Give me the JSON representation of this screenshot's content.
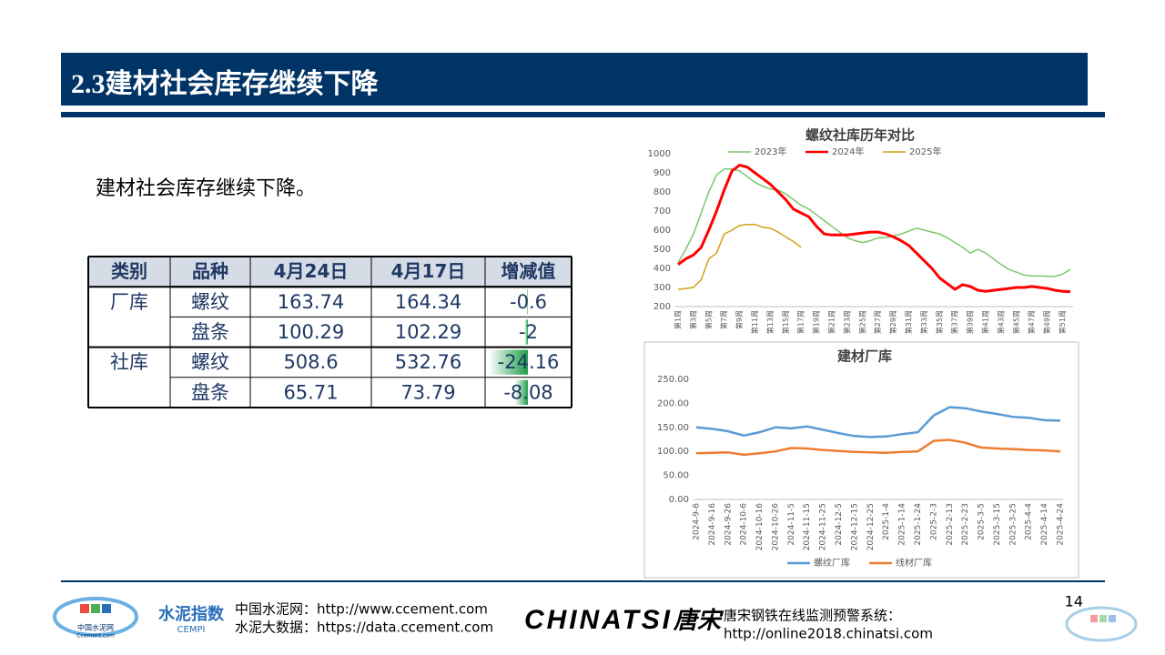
{
  "header": {
    "title": "2.3建材社会库存继续下降"
  },
  "body_text": "建材社会库存继续下降。",
  "table": {
    "columns": [
      "类别",
      "品种",
      "4月24日",
      "4月17日",
      "增减值"
    ],
    "groups": [
      {
        "name": "厂库",
        "rows": [
          {
            "name": "螺纹",
            "this_week": 163.74,
            "last_week": 164.34,
            "change": -0.6
          },
          {
            "name": "盘条",
            "this_week": 100.29,
            "last_week": 102.29,
            "change": -2
          }
        ]
      },
      {
        "name": "社库",
        "rows": [
          {
            "name": "螺纹",
            "this_week": 508.6,
            "last_week": 532.76,
            "change": -24.16
          },
          {
            "name": "盘条",
            "this_week": 65.71,
            "last_week": 73.79,
            "change": -8.08
          }
        ]
      }
    ]
  },
  "chart_data": [
    {
      "type": "line",
      "title": "螺纹社库历年对比",
      "categories": [
        "第1周",
        null,
        "第3周",
        null,
        "第5周",
        null,
        "第7周",
        null,
        "第9周",
        null,
        "第11周",
        null,
        "第13周",
        null,
        "第15周",
        null,
        "第17周",
        null,
        "第19周",
        null,
        "第21周",
        null,
        "第23周",
        null,
        "第25周",
        null,
        "第27周",
        null,
        "第29周",
        null,
        "第31周",
        null,
        "第33周",
        null,
        "第35周",
        null,
        "第37周",
        null,
        "第39周",
        null,
        "第41周",
        null,
        "第43周",
        null,
        "第45周",
        null,
        "第47周",
        null,
        "第49周",
        null,
        "第51周",
        null
      ],
      "ylim": [
        200,
        1000
      ],
      "yticks": [
        200,
        300,
        400,
        500,
        600,
        700,
        800,
        900,
        1000
      ],
      "grid": false,
      "legend": "top",
      "series": [
        {
          "name": "2023年",
          "color": "#7cc66a",
          "values": [
            430,
            500,
            580,
            690,
            800,
            890,
            920,
            920,
            910,
            880,
            850,
            830,
            815,
            810,
            790,
            760,
            730,
            710,
            680,
            650,
            620,
            590,
            560,
            545,
            535,
            545,
            560,
            560,
            570,
            580,
            595,
            610,
            600,
            590,
            580,
            560,
            535,
            510,
            480,
            500,
            480,
            450,
            420,
            395,
            380,
            365,
            360,
            360,
            358,
            358,
            370,
            395
          ]
        },
        {
          "name": "2024年",
          "color": "#ff0000",
          "values": [
            420,
            450,
            470,
            510,
            600,
            700,
            810,
            910,
            940,
            930,
            900,
            870,
            840,
            800,
            760,
            710,
            690,
            670,
            620,
            580,
            575,
            575,
            575,
            580,
            585,
            590,
            590,
            580,
            565,
            545,
            520,
            480,
            440,
            400,
            350,
            320,
            290,
            315,
            305,
            285,
            280,
            285,
            290,
            295,
            300,
            300,
            305,
            300,
            295,
            285,
            280,
            278
          ]
        },
        {
          "name": "2025年",
          "color": "#d4a017",
          "values": [
            290,
            295,
            300,
            340,
            450,
            480,
            580,
            600,
            625,
            630,
            630,
            615,
            610,
            590,
            565,
            540,
            510,
            null,
            null,
            null,
            null,
            null,
            null,
            null,
            null,
            null,
            null,
            null,
            null,
            null,
            null,
            null,
            null,
            null,
            null,
            null,
            null,
            null,
            null,
            null,
            null,
            null,
            null,
            null,
            null,
            null,
            null,
            null,
            null,
            null,
            null,
            null
          ]
        }
      ]
    },
    {
      "type": "line",
      "title": "建材厂库",
      "categories": [
        "2024-9-6",
        "2024-9-16",
        "2024-9-26",
        "2024-10-6",
        "2024-10-16",
        "2024-10-26",
        "2024-11-5",
        "2024-11-15",
        "2024-11-25",
        "2024-12-5",
        "2024-12-15",
        "2024-12-25",
        "2025-1-4",
        "2025-1-14",
        "2025-1-24",
        "2025-2-3",
        "2025-2-13",
        "2025-2-23",
        "2025-3-5",
        "2025-3-15",
        "2025-3-25",
        "2025-4-4",
        "2025-4-14",
        "2025-4-24"
      ],
      "ylim": [
        0,
        250
      ],
      "yticks": [
        {
          "value": 0,
          "label": "0.00"
        },
        {
          "value": 50,
          "label": "50.00"
        },
        {
          "value": 100,
          "label": "100.00"
        },
        {
          "value": 150,
          "label": "150.00"
        },
        {
          "value": 200,
          "label": "200.00"
        },
        {
          "value": 250,
          "label": "250.00"
        }
      ],
      "grid": false,
      "legend": "bottom",
      "series": [
        {
          "name": "螺纹厂库",
          "color": "#5b9bd5",
          "values": [
            150,
            147,
            142,
            133,
            140,
            150,
            148,
            152,
            145,
            138,
            132,
            130,
            131,
            136,
            140,
            175,
            192,
            190,
            183,
            178,
            172,
            170,
            165,
            164
          ]
        },
        {
          "name": "线材厂库",
          "color": "#ed7d31",
          "values": [
            96,
            97,
            98,
            93,
            96,
            100,
            107,
            106,
            103,
            101,
            99,
            98,
            97,
            99,
            100,
            122,
            124,
            118,
            108,
            106,
            105,
            103,
            102,
            100
          ]
        }
      ]
    }
  ],
  "footer": {
    "logo1": "中国水泥网",
    "logo1_sub": "Ccement.com",
    "logo2": "水泥指数",
    "logo2_sub": "CEMPI",
    "link1": "中国水泥网：http://www.ccement.com",
    "link2": "水泥大数据：https://data.ccement.com",
    "brand": "CHINATSI",
    "brand_cn": "唐宋",
    "system": "唐宋钢铁在线监测预警系统：",
    "system_url": "http://online2018.chinatsi.com",
    "page": "14"
  }
}
